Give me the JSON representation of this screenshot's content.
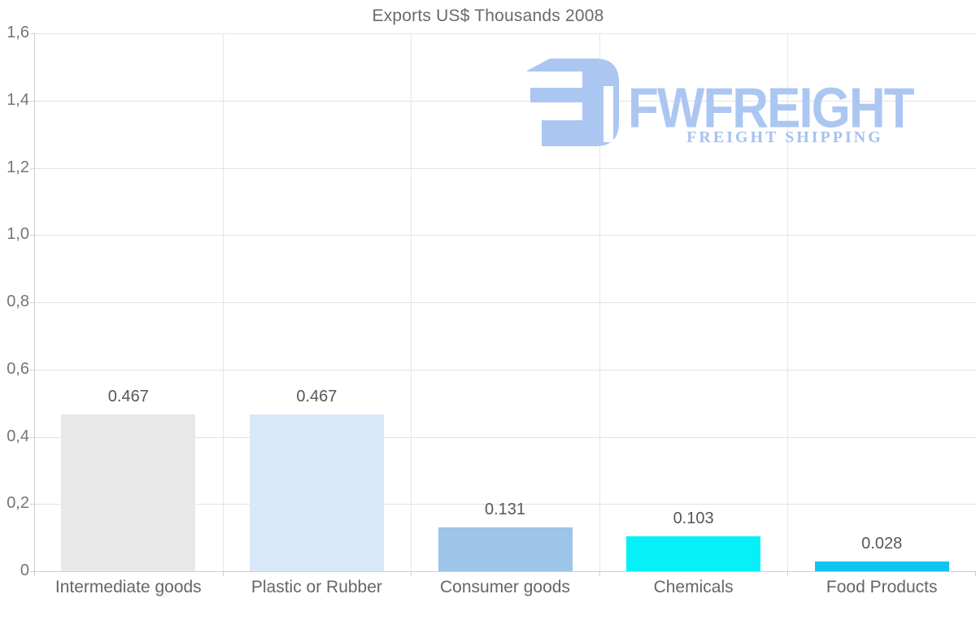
{
  "title": "Exports US$ Thousands 2008",
  "watermark": {
    "brand": "FWFREIGHT",
    "tagline": "FREIGHT SHIPPING",
    "logo_color": "#abc7f1"
  },
  "chart_data": {
    "type": "bar",
    "title": "Exports US$ Thousands 2008",
    "categories": [
      "Intermediate goods",
      "Plastic or Rubber",
      "Consumer goods",
      "Chemicals",
      "Food Products"
    ],
    "values": [
      0.467,
      0.467,
      0.131,
      0.103,
      0.028
    ],
    "value_labels": [
      "0.467",
      "0.467",
      "0.131",
      "0.103",
      "0.028"
    ],
    "bar_colors": [
      "#e8e8e8",
      "#d9e8f9",
      "#9cc5e9",
      "#05f1f7",
      "#0fc3f2"
    ],
    "xlabel": "",
    "ylabel": "",
    "ylim": [
      0,
      1.6
    ],
    "y_tick_values": [
      0,
      0.2,
      0.4,
      0.6,
      0.8,
      1.0,
      1.2,
      1.4,
      1.6
    ],
    "y_tick_labels": [
      "0",
      "0,2",
      "0,4",
      "0,6",
      "0,8",
      "1,0",
      "1,2",
      "1,4",
      "1,6"
    ],
    "grid": true,
    "legend": false,
    "decimal_separator": "comma"
  },
  "style": {
    "grid_color": "#e3e3e3",
    "axis_color": "#cfcfcf",
    "text_color": "#6a6a6a"
  }
}
